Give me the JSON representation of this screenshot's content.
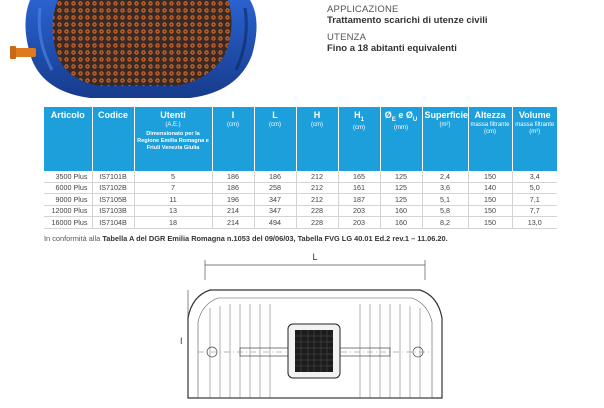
{
  "info": {
    "application_label": "APPLICAZIONE",
    "application_value": "Trattamento scarichi di utenze civili",
    "usage_label": "UTENZA",
    "usage_value": "Fino a 18 abitanti equivalenti"
  },
  "table": {
    "headers": [
      {
        "title": "Articolo",
        "sub": ""
      },
      {
        "title": "Codice",
        "sub": ""
      },
      {
        "title": "Utenti",
        "sub": "(A.E.)",
        "note": "Dimensionato per la Regione Emilia Romagna e Friuli Venezia Giulia"
      },
      {
        "title": "I",
        "sub": "(cm)"
      },
      {
        "title": "L",
        "sub": "(cm)"
      },
      {
        "title": "H",
        "sub": "(cm)"
      },
      {
        "title": "H",
        "title_sub": "1",
        "sub": "(cm)"
      },
      {
        "title": "Ø",
        "title_sub": "E",
        "title_mid": " e Ø",
        "title_sub2": "U",
        "sub": "(mm)"
      },
      {
        "title": "Superficie",
        "sub": "(m²)"
      },
      {
        "title": "Altezza",
        "sub": "massa filtrante (cm)"
      },
      {
        "title": "Volume",
        "sub": "massa filtrante (m³)"
      }
    ],
    "rows": [
      [
        "3500 Plus",
        "IS7101B",
        "5",
        "186",
        "186",
        "212",
        "165",
        "125",
        "2,4",
        "150",
        "3,4"
      ],
      [
        "6000 Plus",
        "IS7102B",
        "7",
        "186",
        "258",
        "212",
        "161",
        "125",
        "3,6",
        "140",
        "5,0"
      ],
      [
        "9000 Plus",
        "IS7105B",
        "11",
        "196",
        "347",
        "212",
        "187",
        "125",
        "5,1",
        "150",
        "7,1"
      ],
      [
        "12000 Plus",
        "IS7103B",
        "13",
        "214",
        "347",
        "228",
        "203",
        "160",
        "5,8",
        "150",
        "7,7"
      ],
      [
        "16000 Plus",
        "IS7104B",
        "18",
        "214",
        "494",
        "228",
        "203",
        "160",
        "8,2",
        "150",
        "13,0"
      ]
    ]
  },
  "note": {
    "prefix": "In conformità alla ",
    "bold": "Tabella A del DGR Emilia Romagna n.1053 del 09/06/03, Tabella FVG LG 40.01 Ed.2 rev.1 – 11.06.20."
  },
  "drawing": {
    "dim_length": "L",
    "dim_width": "I"
  },
  "colors": {
    "header_bg": "#1d9fdc",
    "tank_blue": "#1f4fb0",
    "outlet_orange": "#e07a1f"
  }
}
